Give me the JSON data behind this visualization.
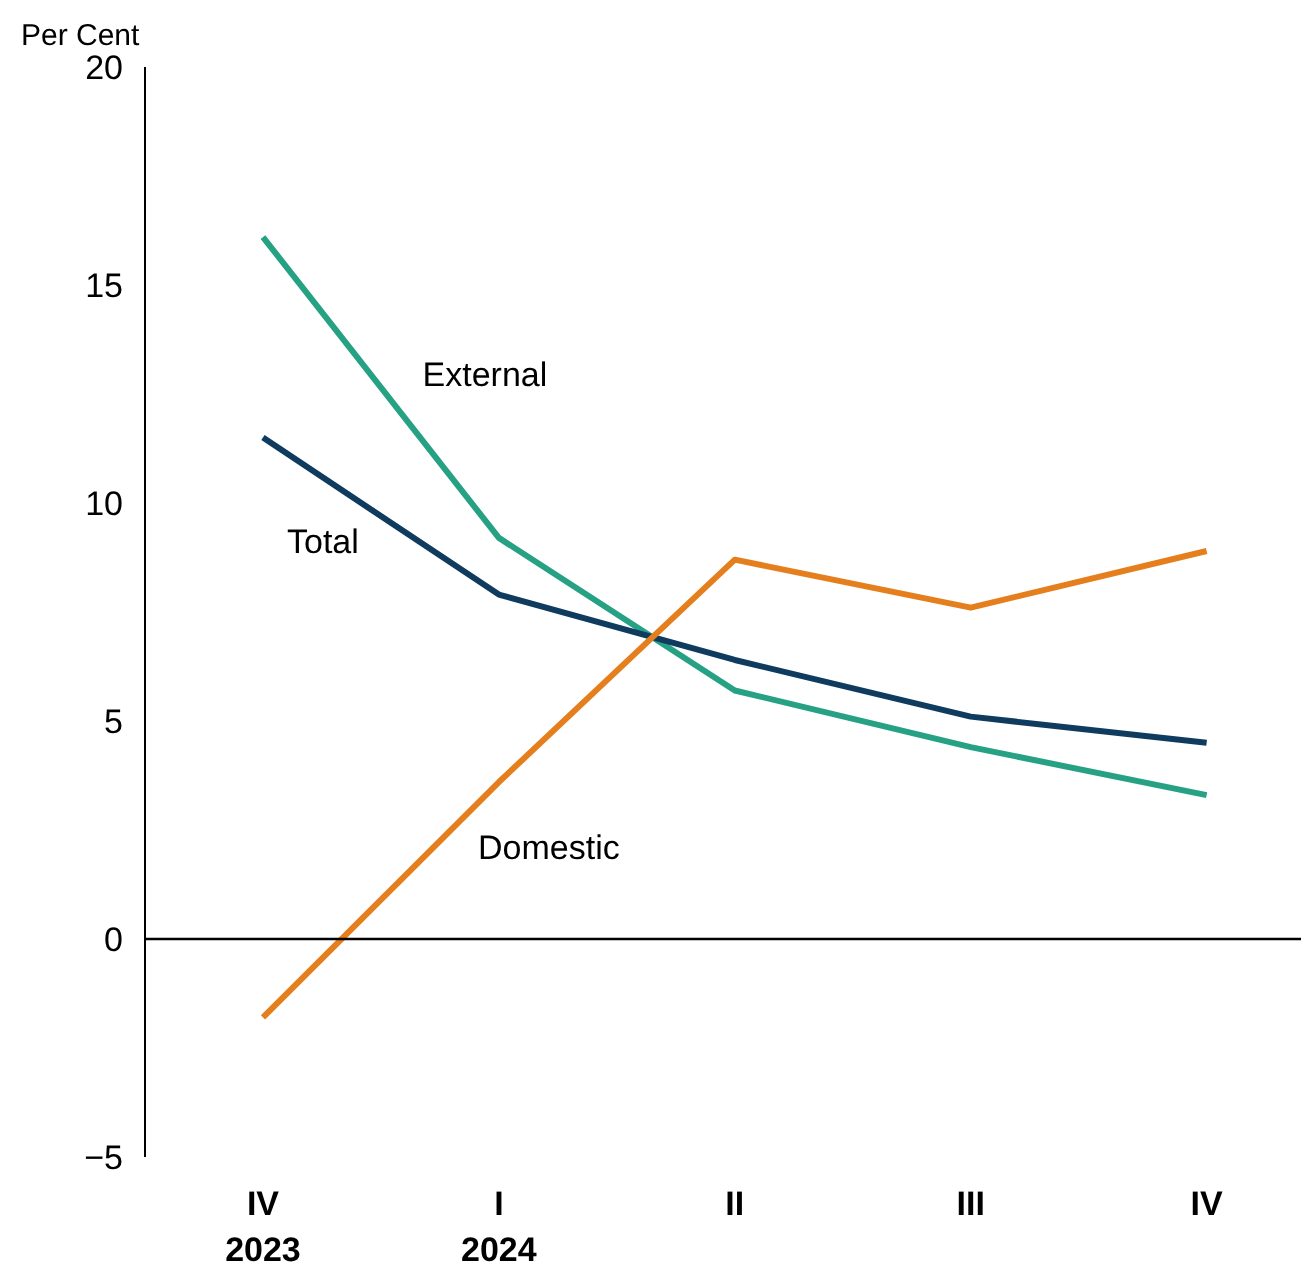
{
  "chart_data": {
    "type": "line",
    "ylabel": "Per Cent",
    "categories": [
      "IV\n2023",
      "I\n2024",
      "II",
      "III",
      "IV"
    ],
    "ylim": [
      -5,
      20
    ],
    "yticks": [
      -5,
      0,
      5,
      10,
      15,
      20
    ],
    "grid": false,
    "ref_lines": [
      {
        "axis": "y",
        "value": 0,
        "color": "#000000"
      }
    ],
    "series": [
      {
        "name": "External",
        "color": "#26a184",
        "values": [
          16.1,
          9.2,
          5.7,
          4.4,
          3.3
        ]
      },
      {
        "name": "Total",
        "color": "#0f3b5f",
        "values": [
          11.5,
          7.9,
          6.4,
          5.1,
          4.5
        ]
      },
      {
        "name": "Domestic",
        "color": "#e57f1e",
        "values": [
          -1.8,
          3.6,
          8.7,
          7.6,
          8.9
        ]
      }
    ]
  }
}
